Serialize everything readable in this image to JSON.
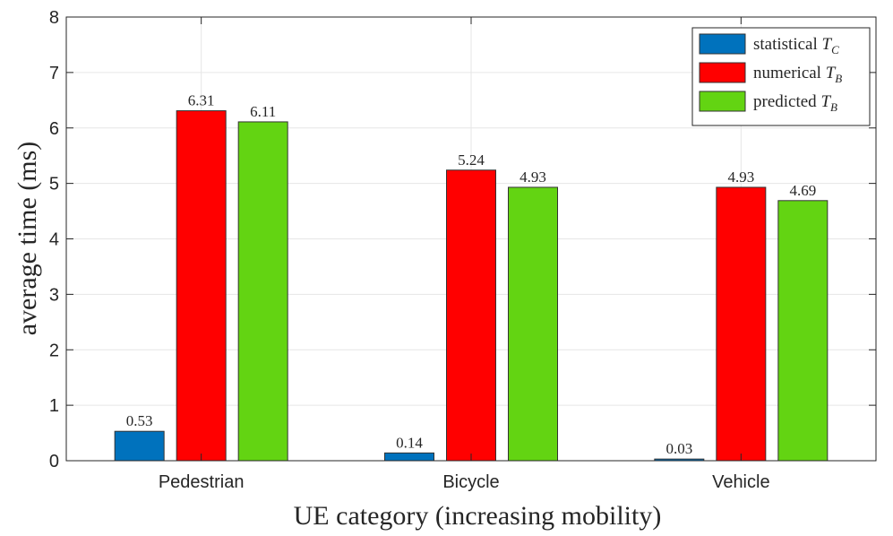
{
  "chart_data": {
    "type": "bar",
    "title": "",
    "xlabel": "UE category (increasing mobility)",
    "ylabel": "average time (ms)",
    "ylim": [
      0,
      8
    ],
    "yticks": [
      "0",
      "1",
      "2",
      "3",
      "4",
      "5",
      "6",
      "7",
      "8"
    ],
    "grid": true,
    "legend_position": "top-right",
    "categories": [
      "Pedestrian",
      "Bicycle",
      "Vehicle"
    ],
    "series": [
      {
        "name": "statistical T_C",
        "legend_text": "statistical",
        "legend_symbol": "T",
        "legend_subscript": "C",
        "color": "#0072BD",
        "values": [
          0.53,
          0.14,
          0.03
        ],
        "labels": [
          "0.53",
          "0.14",
          "0.03"
        ]
      },
      {
        "name": "numerical T_B",
        "legend_text": "numerical",
        "legend_symbol": "T",
        "legend_subscript": "B",
        "color": "#FF0000",
        "values": [
          6.31,
          5.24,
          4.93
        ],
        "labels": [
          "6.31",
          "5.24",
          "4.93"
        ]
      },
      {
        "name": "predicted T_B",
        "legend_text": "predicted",
        "legend_symbol": "T",
        "legend_subscript": "B",
        "color": "#63D412",
        "values": [
          6.11,
          4.93,
          4.69
        ],
        "labels": [
          "6.11",
          "4.93",
          "4.69"
        ]
      }
    ]
  }
}
